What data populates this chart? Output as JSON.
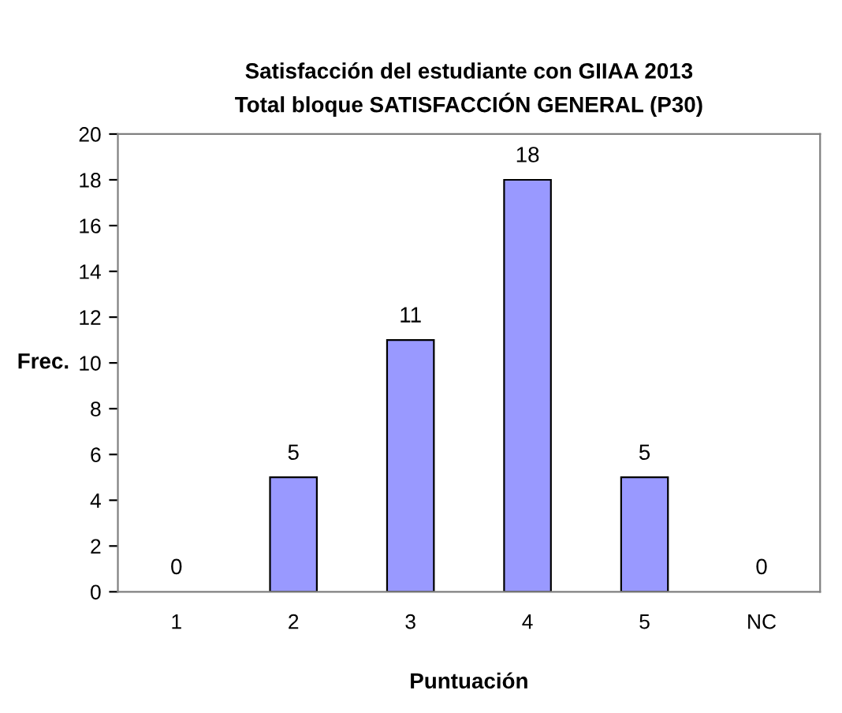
{
  "chart_data": {
    "type": "bar",
    "title": "Satisfacción del estudiante con GIIAA 2013\nTotal bloque SATISFACCIÓN GENERAL (P30)",
    "xlabel": "Puntuación",
    "ylabel": "Frec.",
    "categories": [
      "1",
      "2",
      "3",
      "4",
      "5",
      "NC"
    ],
    "values": [
      0,
      5,
      11,
      18,
      5,
      0
    ],
    "color": "#9999ff",
    "ylim": [
      0,
      20
    ],
    "yticks": [
      0,
      2,
      4,
      6,
      8,
      10,
      12,
      14,
      16,
      18,
      20
    ],
    "grid": false,
    "data_labels": true
  }
}
